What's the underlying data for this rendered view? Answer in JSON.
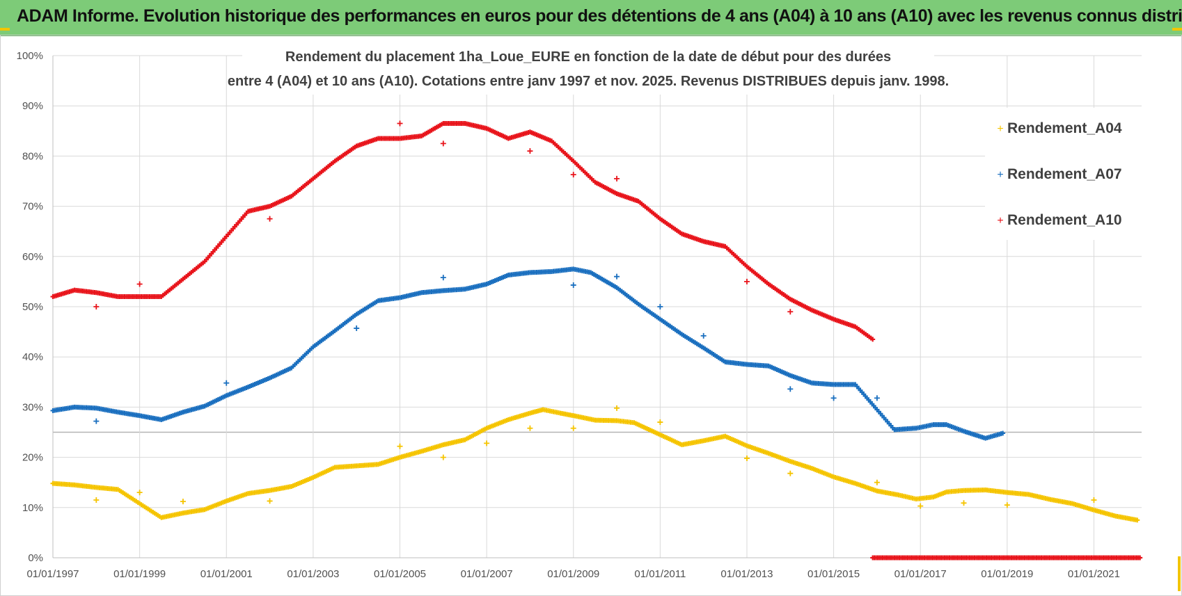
{
  "header": {
    "banner_title": "ADAM Informe. Evolution historique des performances en euros pour des détentions de 4 ans (A04) à 10 ans (A10) avec les revenus connus distribués"
  },
  "colors": {
    "banner_bg": "#7dcb78",
    "A04": "#f5c400",
    "A07": "#1a6fbf",
    "A10": "#e8141b",
    "grid": "#d9d9d9"
  },
  "chart_data": {
    "type": "scatter",
    "title_lines": [
      "Rendement du placement 1ha_Loue_EURE en fonction de la date de début pour des durées",
      "entre 4 (A04) et 10 ans (A10).  Cotations entre janv 1997 et nov. 2025. Revenus DISTRIBUES depuis janv. 1998."
    ],
    "x_ticks": [
      "01/01/1997",
      "01/01/1999",
      "01/01/2001",
      "01/01/2003",
      "01/01/2005",
      "01/01/2007",
      "01/01/2009",
      "01/01/2011",
      "01/01/2013",
      "01/01/2015",
      "01/01/2017",
      "01/01/2019",
      "01/01/2021"
    ],
    "y_ticks": [
      "0%",
      "10%",
      "20%",
      "30%",
      "40%",
      "50%",
      "60%",
      "70%",
      "80%",
      "90%",
      "100%"
    ],
    "xlim": [
      1997.0,
      2022.1
    ],
    "ylim": [
      0,
      100
    ],
    "legend_position": "top-right",
    "grid": true,
    "series": [
      {
        "name": "Rendement_A04",
        "color": "#f5c400",
        "points": [
          [
            1997.0,
            14.8
          ],
          [
            1997.5,
            14.5
          ],
          [
            1998.0,
            14.0
          ],
          [
            1998.5,
            13.6
          ],
          [
            1999.0,
            10.8
          ],
          [
            1999.5,
            8.0
          ],
          [
            2000.0,
            8.9
          ],
          [
            2000.5,
            9.6
          ],
          [
            2001.0,
            11.3
          ],
          [
            2001.5,
            12.8
          ],
          [
            2002.0,
            13.4
          ],
          [
            2002.5,
            14.2
          ],
          [
            2003.0,
            16.0
          ],
          [
            2003.5,
            18.0
          ],
          [
            2004.0,
            18.3
          ],
          [
            2004.5,
            18.6
          ],
          [
            2005.0,
            20.0
          ],
          [
            2005.5,
            21.2
          ],
          [
            2006.0,
            22.5
          ],
          [
            2006.5,
            23.5
          ],
          [
            2007.0,
            25.8
          ],
          [
            2007.5,
            27.5
          ],
          [
            2008.0,
            28.8
          ],
          [
            2008.3,
            29.5
          ],
          [
            2008.7,
            28.8
          ],
          [
            2009.0,
            28.3
          ],
          [
            2009.5,
            27.4
          ],
          [
            2010.0,
            27.3
          ],
          [
            2010.4,
            26.9
          ],
          [
            2011.0,
            24.5
          ],
          [
            2011.5,
            22.5
          ],
          [
            2012.0,
            23.3
          ],
          [
            2012.5,
            24.2
          ],
          [
            2013.0,
            22.3
          ],
          [
            2013.5,
            20.8
          ],
          [
            2014.0,
            19.2
          ],
          [
            2014.5,
            17.8
          ],
          [
            2015.0,
            16.1
          ],
          [
            2015.5,
            14.8
          ],
          [
            2016.0,
            13.3
          ],
          [
            2016.5,
            12.5
          ],
          [
            2016.9,
            11.7
          ],
          [
            2017.3,
            12.1
          ],
          [
            2017.6,
            13.1
          ],
          [
            2018.0,
            13.4
          ],
          [
            2018.5,
            13.5
          ],
          [
            2019.0,
            13.0
          ],
          [
            2019.5,
            12.6
          ],
          [
            2020.0,
            11.6
          ],
          [
            2020.5,
            10.8
          ],
          [
            2021.0,
            9.5
          ],
          [
            2021.5,
            8.3
          ],
          [
            2022.0,
            7.5
          ]
        ],
        "outliers": [
          [
            1998.0,
            11.5
          ],
          [
            1999.0,
            13.0
          ],
          [
            2000.0,
            11.2
          ],
          [
            2002.0,
            11.3
          ],
          [
            2005.0,
            22.2
          ],
          [
            2006.0,
            20.0
          ],
          [
            2007.0,
            22.8
          ],
          [
            2008.0,
            25.8
          ],
          [
            2009.0,
            25.8
          ],
          [
            2010.0,
            29.8
          ],
          [
            2011.0,
            27.0
          ],
          [
            2013.0,
            19.8
          ],
          [
            2014.0,
            16.8
          ],
          [
            2016.0,
            15.0
          ],
          [
            2017.0,
            10.3
          ],
          [
            2018.0,
            10.9
          ],
          [
            2019.0,
            10.5
          ],
          [
            2021.0,
            11.5
          ]
        ]
      },
      {
        "name": "Rendement_A07",
        "color": "#1a6fbf",
        "points": [
          [
            1997.0,
            29.3
          ],
          [
            1997.5,
            30.0
          ],
          [
            1998.0,
            29.8
          ],
          [
            1998.5,
            29.0
          ],
          [
            1999.0,
            28.3
          ],
          [
            1999.5,
            27.5
          ],
          [
            2000.0,
            29.0
          ],
          [
            2000.5,
            30.2
          ],
          [
            2001.0,
            32.3
          ],
          [
            2001.5,
            34.0
          ],
          [
            2002.0,
            35.8
          ],
          [
            2002.5,
            37.8
          ],
          [
            2003.0,
            42.0
          ],
          [
            2003.5,
            45.2
          ],
          [
            2004.0,
            48.5
          ],
          [
            2004.5,
            51.2
          ],
          [
            2005.0,
            51.8
          ],
          [
            2005.5,
            52.8
          ],
          [
            2006.0,
            53.2
          ],
          [
            2006.5,
            53.5
          ],
          [
            2007.0,
            54.5
          ],
          [
            2007.5,
            56.3
          ],
          [
            2008.0,
            56.8
          ],
          [
            2008.5,
            57.0
          ],
          [
            2009.0,
            57.5
          ],
          [
            2009.4,
            56.8
          ],
          [
            2010.0,
            53.8
          ],
          [
            2010.5,
            50.5
          ],
          [
            2011.0,
            47.5
          ],
          [
            2011.5,
            44.5
          ],
          [
            2012.0,
            41.8
          ],
          [
            2012.5,
            39.0
          ],
          [
            2013.0,
            38.5
          ],
          [
            2013.5,
            38.2
          ],
          [
            2014.0,
            36.3
          ],
          [
            2014.5,
            34.8
          ],
          [
            2015.0,
            34.5
          ],
          [
            2015.5,
            34.5
          ],
          [
            2016.0,
            29.5
          ],
          [
            2016.4,
            25.5
          ],
          [
            2016.9,
            25.8
          ],
          [
            2017.3,
            26.5
          ],
          [
            2017.6,
            26.5
          ],
          [
            2018.0,
            25.2
          ],
          [
            2018.5,
            23.8
          ],
          [
            2018.9,
            24.8
          ]
        ],
        "outliers": [
          [
            1998.0,
            27.2
          ],
          [
            2001.0,
            34.8
          ],
          [
            2004.0,
            45.7
          ],
          [
            2006.0,
            55.8
          ],
          [
            2009.0,
            54.3
          ],
          [
            2010.0,
            56.0
          ],
          [
            2011.0,
            50.0
          ],
          [
            2012.0,
            44.2
          ],
          [
            2014.0,
            33.6
          ],
          [
            2015.0,
            31.8
          ],
          [
            2016.0,
            31.8
          ]
        ]
      },
      {
        "name": "Rendement_A10",
        "color": "#e8141b",
        "points": [
          [
            1997.0,
            52.0
          ],
          [
            1997.5,
            53.3
          ],
          [
            1998.0,
            52.8
          ],
          [
            1998.5,
            52.0
          ],
          [
            1999.0,
            52.0
          ],
          [
            1999.5,
            52.0
          ],
          [
            2000.0,
            55.5
          ],
          [
            2000.5,
            59.0
          ],
          [
            2001.0,
            64.0
          ],
          [
            2001.5,
            69.0
          ],
          [
            2002.0,
            70.0
          ],
          [
            2002.5,
            72.0
          ],
          [
            2003.0,
            75.5
          ],
          [
            2003.5,
            79.0
          ],
          [
            2004.0,
            82.0
          ],
          [
            2004.5,
            83.5
          ],
          [
            2005.0,
            83.5
          ],
          [
            2005.5,
            84.0
          ],
          [
            2006.0,
            86.5
          ],
          [
            2006.5,
            86.5
          ],
          [
            2007.0,
            85.5
          ],
          [
            2007.5,
            83.5
          ],
          [
            2008.0,
            84.8
          ],
          [
            2008.5,
            83.0
          ],
          [
            2009.0,
            79.0
          ],
          [
            2009.5,
            74.8
          ],
          [
            2010.0,
            72.5
          ],
          [
            2010.5,
            71.0
          ],
          [
            2011.0,
            67.5
          ],
          [
            2011.5,
            64.5
          ],
          [
            2012.0,
            63.0
          ],
          [
            2012.5,
            62.0
          ],
          [
            2013.0,
            58.0
          ],
          [
            2013.5,
            54.5
          ],
          [
            2014.0,
            51.5
          ],
          [
            2014.5,
            49.3
          ],
          [
            2015.0,
            47.5
          ],
          [
            2015.5,
            46.0
          ],
          [
            2015.9,
            43.5
          ]
        ],
        "outliers": [
          [
            1998.0,
            50.0
          ],
          [
            1999.0,
            54.5
          ],
          [
            2002.0,
            67.5
          ],
          [
            2005.0,
            86.5
          ],
          [
            2006.0,
            82.5
          ],
          [
            2008.0,
            81.0
          ],
          [
            2009.0,
            76.3
          ],
          [
            2010.0,
            75.5
          ],
          [
            2013.0,
            55.0
          ],
          [
            2014.0,
            49.0
          ]
        ],
        "zero_band": [
          2015.9,
          2022.1
        ]
      }
    ]
  }
}
